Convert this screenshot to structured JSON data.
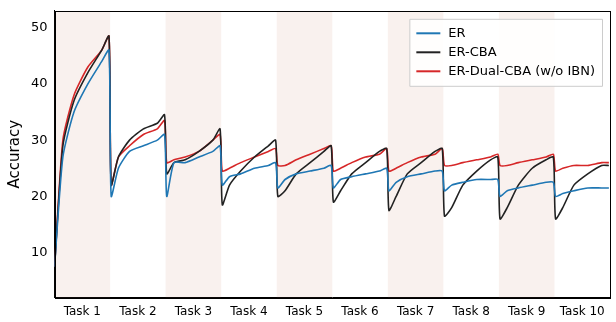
{
  "chart_data": {
    "type": "line",
    "y_label": "Accuracy",
    "x": [
      0,
      0.15,
      0.35,
      0.6,
      0.85,
      0.98,
      1.02,
      1.15,
      1.35,
      1.6,
      1.85,
      1.98,
      2.02,
      2.15,
      2.35,
      2.6,
      2.85,
      2.98,
      3.02,
      3.15,
      3.35,
      3.6,
      3.85,
      3.98,
      4.02,
      4.15,
      4.35,
      4.6,
      4.85,
      4.98,
      5.02,
      5.15,
      5.35,
      5.6,
      5.85,
      5.98,
      6.02,
      6.15,
      6.35,
      6.6,
      6.85,
      6.98,
      7.02,
      7.15,
      7.35,
      7.6,
      7.85,
      7.98,
      8.02,
      8.15,
      8.35,
      8.6,
      8.85,
      8.98,
      9.02,
      9.15,
      9.35,
      9.6,
      9.85,
      9.98
    ],
    "series": [
      {
        "name": "ER",
        "color": "#1f77b4",
        "values": [
          7.5,
          27,
          35,
          40,
          44,
          46,
          20,
          25,
          28,
          29,
          30,
          31,
          20,
          26,
          26,
          27,
          28,
          29,
          22,
          23.5,
          24,
          25,
          25.5,
          26,
          21.5,
          23,
          24,
          24.5,
          25,
          25.5,
          21.5,
          23,
          23.5,
          24,
          24.5,
          25,
          21,
          22.5,
          23.5,
          24,
          24.5,
          24.5,
          21,
          22,
          22.5,
          23,
          23,
          23,
          20,
          21,
          21.5,
          22,
          22.5,
          22.5,
          20,
          20.5,
          21,
          21.5,
          21.5,
          21.5
        ]
      },
      {
        "name": "ER-CBA",
        "color": "#222222",
        "values": [
          7.5,
          29,
          37,
          42,
          46,
          48.5,
          22,
          27,
          30,
          32,
          33,
          34.5,
          24,
          26,
          26.5,
          28,
          30,
          32,
          18.5,
          22,
          24.5,
          27,
          29,
          30,
          20,
          21,
          24,
          26,
          28,
          29,
          19,
          21,
          24,
          26,
          28,
          28.5,
          17.5,
          20,
          24,
          26,
          28,
          28.5,
          16.5,
          18,
          22,
          24.5,
          26.5,
          27,
          16,
          18,
          22,
          25,
          26.5,
          27,
          16,
          18,
          22,
          24,
          25.5,
          25.5
        ]
      },
      {
        "name": "ER-Dual-CBA (w/o IBN)",
        "color": "#d62728",
        "values": [
          7.5,
          30,
          38,
          43,
          46,
          48.5,
          22,
          27,
          29,
          31,
          32,
          33.5,
          26,
          26.5,
          27,
          28,
          30,
          31,
          24.5,
          25,
          26,
          27,
          28,
          28.5,
          25.5,
          25.5,
          26.5,
          27.5,
          28.5,
          29,
          24.5,
          25,
          26,
          27,
          27.5,
          28.5,
          24.5,
          25,
          26,
          27,
          27.5,
          28.5,
          25.5,
          25.5,
          26,
          26.5,
          27,
          27.5,
          25.5,
          25.5,
          26,
          26.5,
          27,
          27.5,
          24.5,
          25,
          25.5,
          25.5,
          26,
          26
        ]
      }
    ],
    "xlim": [
      0,
      10
    ],
    "xticks": [
      {
        "value": 0.5,
        "label": "Task 1"
      },
      {
        "value": 1.5,
        "label": "Task 2"
      },
      {
        "value": 2.5,
        "label": "Task 3"
      },
      {
        "value": 3.5,
        "label": "Task 4"
      },
      {
        "value": 4.5,
        "label": "Task 5"
      },
      {
        "value": 5.5,
        "label": "Task 6"
      },
      {
        "value": 6.5,
        "label": "Task 7"
      },
      {
        "value": 7.5,
        "label": "Task 8"
      },
      {
        "value": 8.5,
        "label": "Task 9"
      },
      {
        "value": 9.5,
        "label": "Task 10"
      }
    ],
    "ylim": [
      2,
      53
    ],
    "yticks": [
      10,
      20,
      30,
      40,
      50
    ],
    "grid": false,
    "legend": "upper right"
  }
}
